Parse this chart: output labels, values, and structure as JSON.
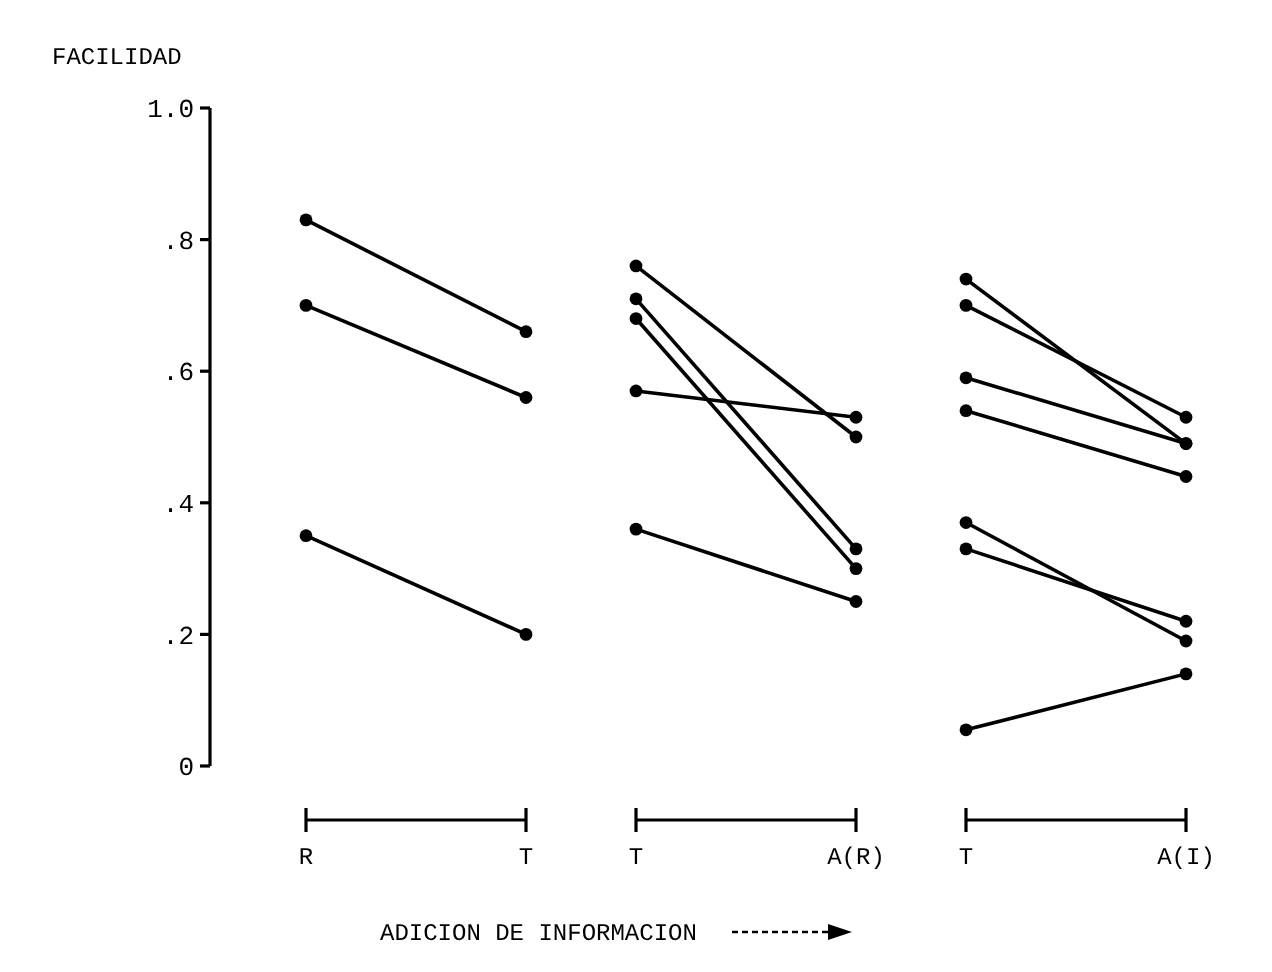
{
  "chart_data": {
    "type": "line",
    "ylabel": "FACILIDAD",
    "xlabel": "ADICION DE INFORMACION",
    "categories": [
      "R",
      "T",
      "T",
      "A(R)",
      "T",
      "A(I)"
    ],
    "ylim": [
      0,
      1
    ],
    "yticks": [
      {
        "value": 0,
        "label": "0"
      },
      {
        "value": 0.2,
        "label": ".2"
      },
      {
        "value": 0.4,
        "label": ".4"
      },
      {
        "value": 0.6,
        "label": ".6"
      },
      {
        "value": 0.8,
        "label": ".8"
      },
      {
        "value": 1,
        "label": "1.0"
      }
    ],
    "marker": "circle",
    "line_style": "solid",
    "series": [
      {
        "color": "#000000",
        "values": [
          0.83,
          0.66,
          null,
          null,
          null,
          null
        ]
      },
      {
        "color": "#000000",
        "values": [
          0.7,
          0.56,
          null,
          null,
          null,
          null
        ]
      },
      {
        "color": "#000000",
        "values": [
          0.35,
          0.2,
          null,
          null,
          null,
          null
        ]
      },
      {
        "color": "#000000",
        "values": [
          null,
          null,
          0.76,
          0.5,
          null,
          null
        ]
      },
      {
        "color": "#000000",
        "values": [
          null,
          null,
          0.71,
          0.33,
          null,
          null
        ]
      },
      {
        "color": "#000000",
        "values": [
          null,
          null,
          0.68,
          0.3,
          null,
          null
        ]
      },
      {
        "color": "#000000",
        "values": [
          null,
          null,
          0.57,
          0.53,
          null,
          null
        ]
      },
      {
        "color": "#000000",
        "values": [
          null,
          null,
          0.36,
          0.25,
          null,
          null
        ]
      },
      {
        "color": "#000000",
        "values": [
          null,
          null,
          null,
          null,
          0.74,
          0.49
        ]
      },
      {
        "color": "#000000",
        "values": [
          null,
          null,
          null,
          null,
          0.7,
          0.53
        ]
      },
      {
        "color": "#000000",
        "values": [
          null,
          null,
          null,
          null,
          0.59,
          0.49
        ]
      },
      {
        "color": "#000000",
        "values": [
          null,
          null,
          null,
          null,
          0.54,
          0.44
        ]
      },
      {
        "color": "#000000",
        "values": [
          null,
          null,
          null,
          null,
          0.37,
          0.19
        ]
      },
      {
        "color": "#000000",
        "values": [
          null,
          null,
          null,
          null,
          0.33,
          0.22
        ]
      },
      {
        "color": "#000000",
        "values": [
          null,
          null,
          null,
          null,
          0.055,
          0.14
        ]
      }
    ]
  }
}
